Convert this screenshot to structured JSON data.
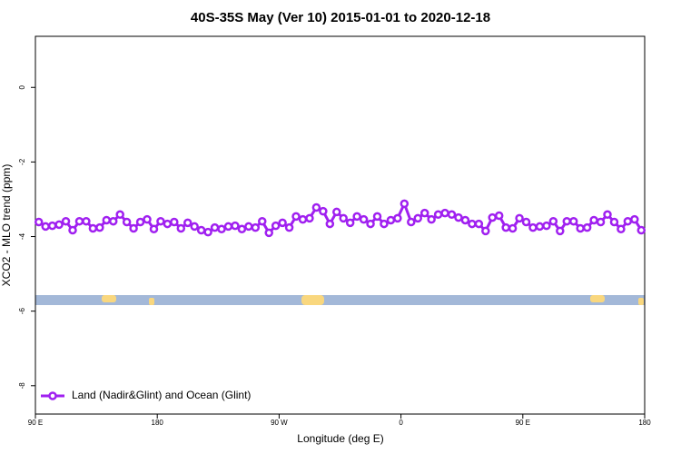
{
  "chart_data": {
    "type": "line",
    "title": "40S-35S May (Ver 10)   2015-01-01 to 2020-12-18",
    "x_label": "Longitude (deg E)",
    "y_label": "XCO2 - MLO trend (ppm)",
    "xlim": [
      90,
      540
    ],
    "ylim": [
      -8.76,
      1.37
    ],
    "xticks": [
      {
        "value": 90,
        "label": "90 E"
      },
      180,
      {
        "value": 270,
        "label": "90 W"
      },
      {
        "value": 360,
        "label": "0"
      },
      {
        "value": 450,
        "label": "90 E"
      },
      {
        "value": 540,
        "label": "180"
      }
    ],
    "yticks": [
      0,
      -2,
      -4,
      -6,
      -8
    ],
    "legend": "bottom-left",
    "x": [
      92.5,
      97.5,
      102.5,
      107.5,
      112.5,
      117.5,
      122.5,
      127.5,
      132.5,
      137.5,
      142.5,
      147.5,
      152.5,
      157.5,
      162.5,
      167.5,
      172.5,
      177.5,
      182.5,
      187.5,
      192.5,
      197.5,
      202.5,
      207.5,
      212.5,
      217.5,
      222.5,
      227.5,
      232.5,
      237.5,
      242.5,
      247.5,
      252.5,
      257.5,
      262.5,
      267.5,
      272.5,
      277.5,
      282.5,
      287.5,
      292.5,
      297.5,
      302.5,
      307.5,
      312.5,
      317.5,
      322.5,
      327.5,
      332.5,
      337.5,
      342.5,
      347.5,
      352.5,
      357.5,
      362.5,
      367.5,
      372.5,
      377.5,
      382.5,
      387.5,
      392.5,
      397.5,
      402.5,
      407.5,
      412.5,
      417.5,
      422.5,
      427.5,
      432.5,
      437.5,
      442.5,
      447.5,
      452.5,
      457.5,
      462.5,
      467.5,
      472.5,
      477.5,
      482.5,
      487.5,
      492.5,
      497.5,
      502.5,
      507.5,
      512.5,
      517.5,
      522.5,
      527.5,
      532.5,
      537.5
    ],
    "series": [
      {
        "name": "Land (Nadir&Glint) and Ocean (Glint)",
        "color": "#a020f0",
        "values": [
          -3.61,
          -3.73,
          -3.71,
          -3.68,
          -3.59,
          -3.83,
          -3.59,
          -3.59,
          -3.78,
          -3.76,
          -3.56,
          -3.59,
          -3.41,
          -3.61,
          -3.78,
          -3.61,
          -3.54,
          -3.8,
          -3.59,
          -3.66,
          -3.61,
          -3.78,
          -3.63,
          -3.73,
          -3.83,
          -3.88,
          -3.76,
          -3.8,
          -3.73,
          -3.71,
          -3.8,
          -3.73,
          -3.76,
          -3.59,
          -3.9,
          -3.71,
          -3.63,
          -3.76,
          -3.46,
          -3.54,
          -3.51,
          -3.22,
          -3.32,
          -3.66,
          -3.34,
          -3.51,
          -3.63,
          -3.46,
          -3.54,
          -3.66,
          -3.46,
          -3.66,
          -3.56,
          -3.51,
          -3.12,
          -3.61,
          -3.51,
          -3.37,
          -3.54,
          -3.41,
          -3.37,
          -3.41,
          -3.49,
          -3.56,
          -3.66,
          -3.66,
          -3.85,
          -3.49,
          -3.44,
          -3.76,
          -3.78,
          -3.51,
          -3.61,
          -3.76,
          -3.73,
          -3.71,
          -3.59,
          -3.85,
          -3.59,
          -3.59,
          -3.78,
          -3.76,
          -3.56,
          -3.61,
          -3.41,
          -3.61,
          -3.8,
          -3.59,
          -3.54,
          -3.83
        ]
      }
    ]
  }
}
